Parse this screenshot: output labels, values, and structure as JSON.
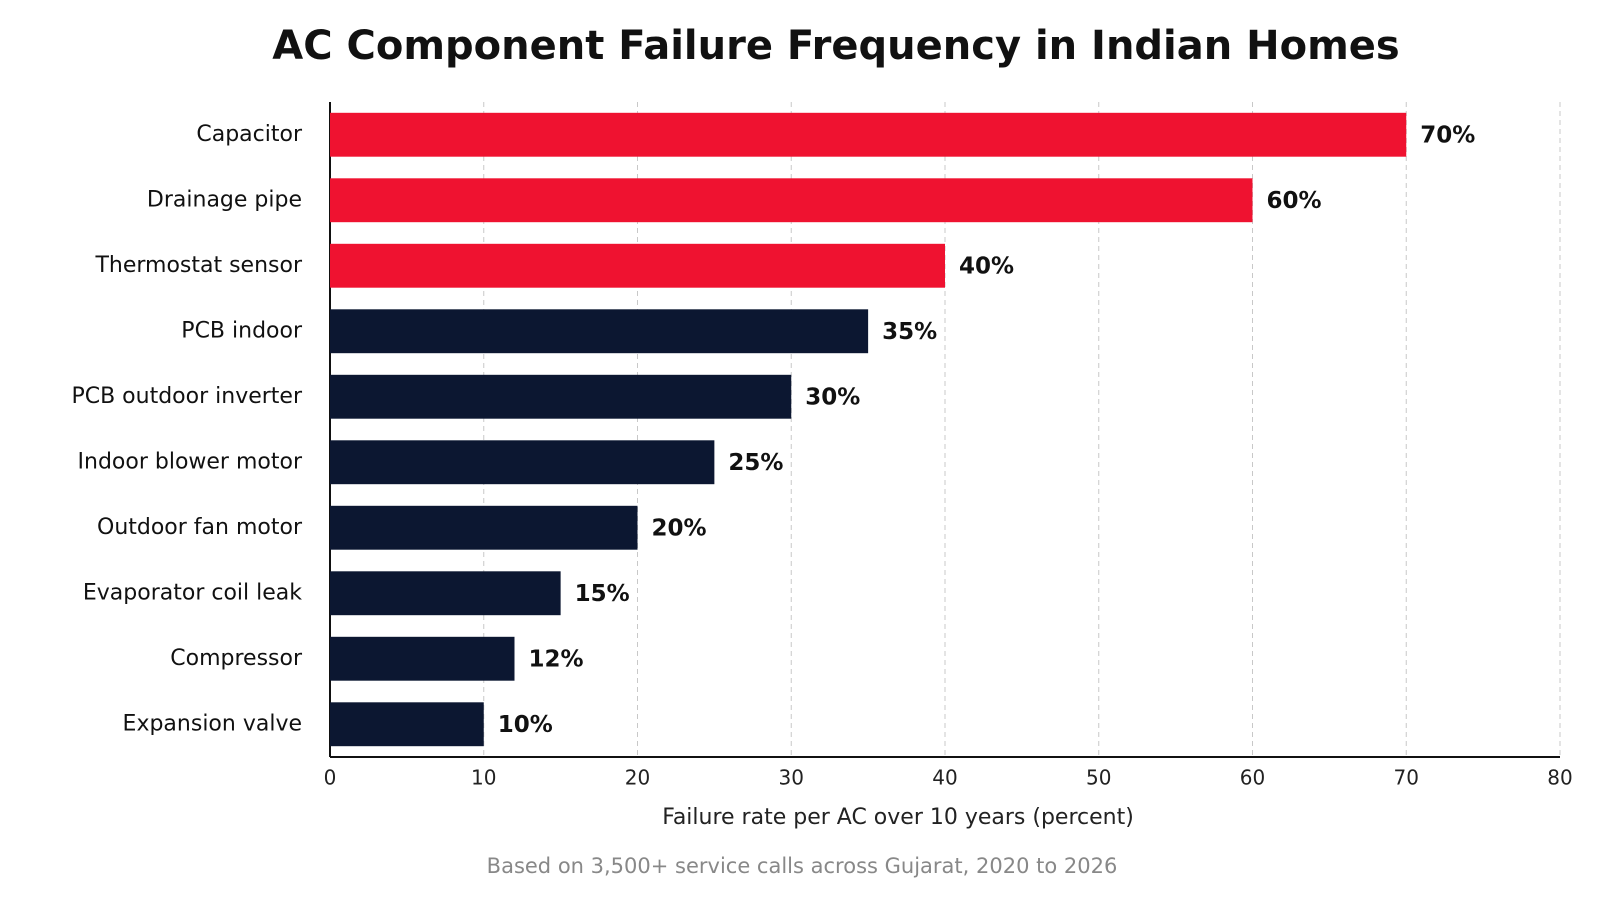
{
  "chart_data": {
    "type": "bar",
    "orientation": "horizontal",
    "title": "AC Component Failure Frequency in Indian Homes",
    "x_label": "Failure rate per AC over 10 years (percent)",
    "note": "Based on 3,500+ service calls across Gujarat, 2020 to 2026",
    "categories": [
      "Capacitor",
      "Drainage pipe",
      "Thermostat sensor",
      "PCB indoor",
      "PCB outdoor inverter",
      "Indoor blower motor",
      "Outdoor fan motor",
      "Evaporator coil leak",
      "Compressor",
      "Expansion valve"
    ],
    "values": [
      70,
      60,
      40,
      35,
      30,
      25,
      20,
      15,
      12,
      10
    ],
    "value_labels": [
      "70%",
      "60%",
      "40%",
      "35%",
      "30%",
      "25%",
      "20%",
      "15%",
      "12%",
      "10%"
    ],
    "colors": [
      "#ef1230",
      "#ef1230",
      "#ef1230",
      "#0c1731",
      "#0c1731",
      "#0c1731",
      "#0c1731",
      "#0c1731",
      "#0c1731",
      "#0c1731"
    ],
    "xlim": [
      0,
      80
    ],
    "xticks": [
      0,
      10,
      20,
      30,
      40,
      50,
      60,
      70,
      80
    ],
    "grid": true
  }
}
